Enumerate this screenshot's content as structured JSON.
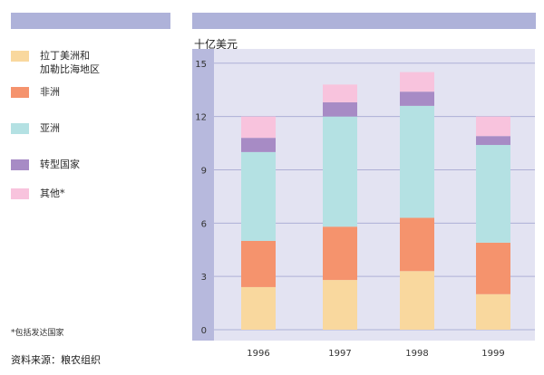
{
  "colors": {
    "header": "#aeb2d9",
    "plot_bg": "#e3e3f2",
    "axis_band": "#b7b9dd",
    "grid": "#aeb0d6",
    "latam": "#f9d89e",
    "africa": "#f5936d",
    "asia": "#b4e1e3",
    "transition": "#a78bc5",
    "other": "#f8c3dd"
  },
  "legend": [
    {
      "key": "latam",
      "label": "拉丁美洲和\n加勒比海地区",
      "color": "#f9d89e"
    },
    {
      "key": "africa",
      "label": "非洲",
      "color": "#f5936d"
    },
    {
      "key": "asia",
      "label": "亚洲",
      "color": "#b4e1e3"
    },
    {
      "key": "transition",
      "label": "转型国家",
      "color": "#a78bc5"
    },
    {
      "key": "other",
      "label": "其他*",
      "color": "#f8c3dd"
    }
  ],
  "footnote": "*包括发达国家",
  "source": "资料来源：粮农组织",
  "chart_data": {
    "type": "bar",
    "stacked": true,
    "ylabel": "十亿美元",
    "xlabel": "",
    "ylim": [
      0,
      15.5
    ],
    "yticks": [
      0,
      3,
      6,
      9,
      12,
      15
    ],
    "grid": true,
    "categories": [
      "1996",
      "1997",
      "1998",
      "1999"
    ],
    "series": [
      {
        "name": "拉丁美洲和\n加勒比海地区",
        "color": "#f9d89e",
        "values": [
          2.4,
          2.8,
          3.3,
          2.0
        ]
      },
      {
        "name": "非洲",
        "color": "#f5936d",
        "values": [
          2.6,
          3.0,
          3.0,
          2.9
        ]
      },
      {
        "name": "亚洲",
        "color": "#b4e1e3",
        "values": [
          5.0,
          6.2,
          6.3,
          5.5
        ]
      },
      {
        "name": "转型国家",
        "color": "#a78bc5",
        "values": [
          0.8,
          0.8,
          0.8,
          0.5
        ]
      },
      {
        "name": "其他*",
        "color": "#f8c3dd",
        "values": [
          1.2,
          1.0,
          1.1,
          1.1
        ]
      }
    ]
  }
}
